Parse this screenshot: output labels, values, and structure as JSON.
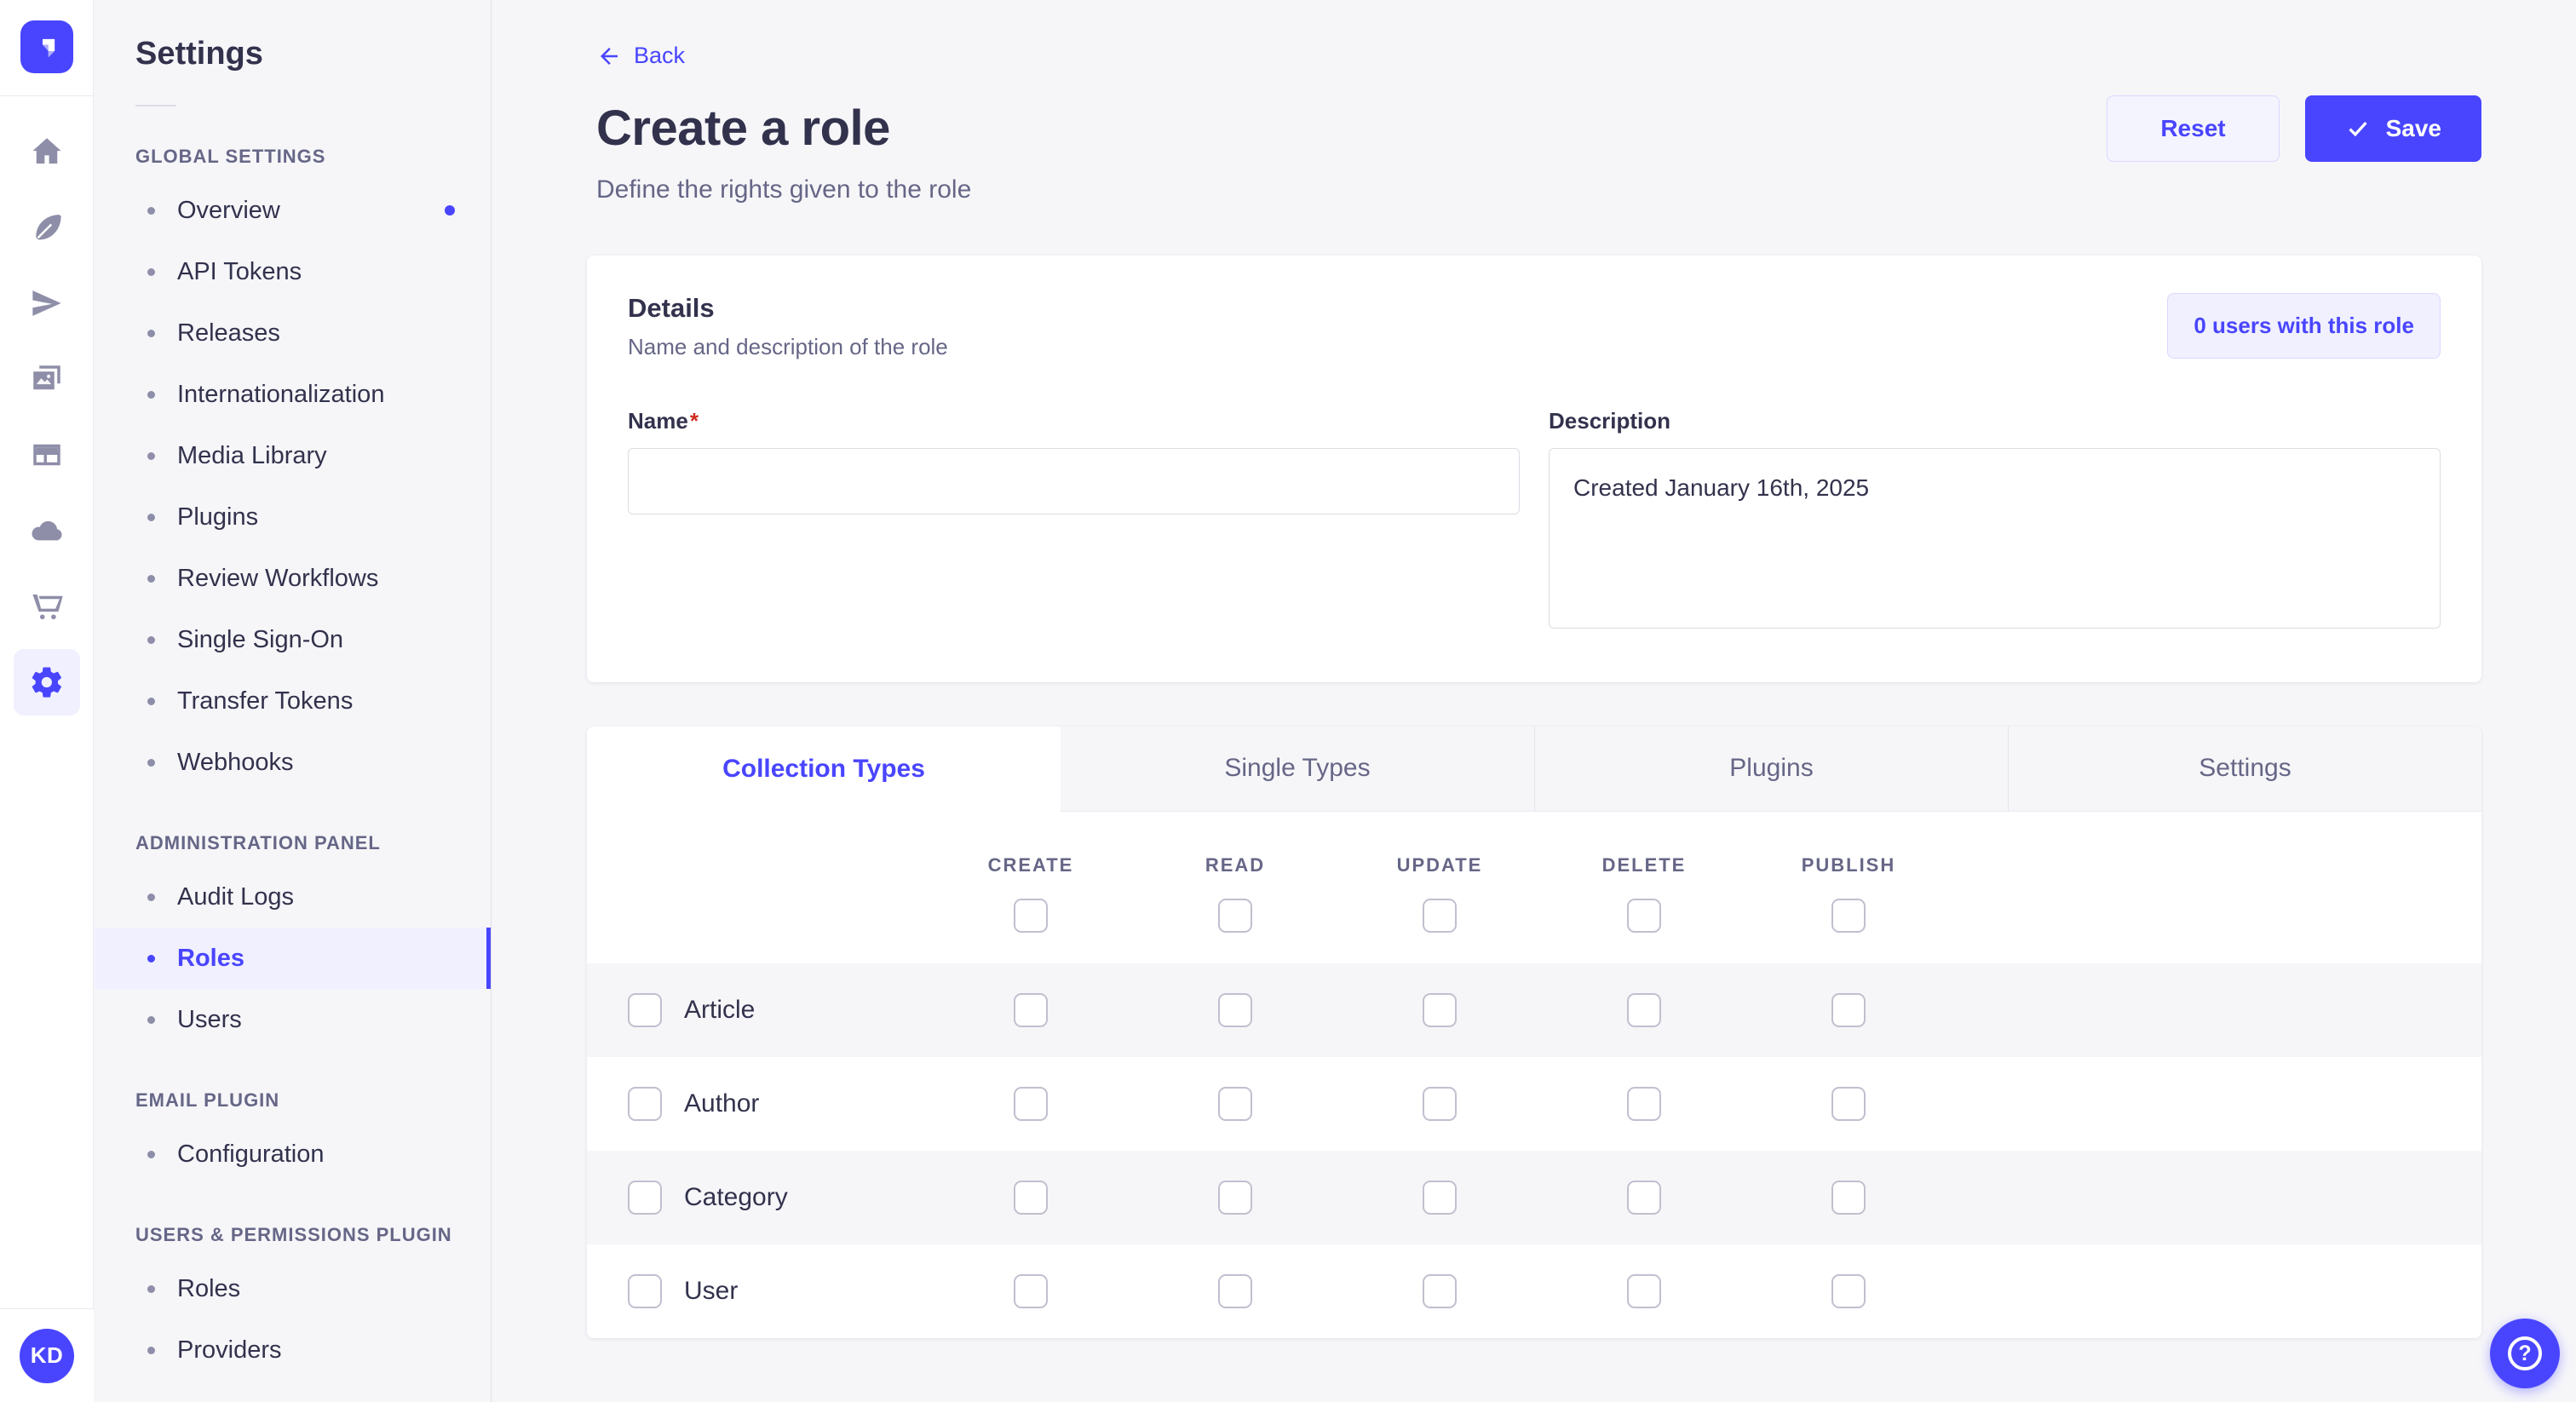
{
  "colors": {
    "brand_purple": "#4945ff",
    "brand_purple_light_bg": "#f0f0ff",
    "brand_purple_border": "#d9d8ff",
    "text_dark": "#32324d",
    "text_muted": "#666687",
    "page_bg": "#f6f6f9",
    "required_red": "#d02b20"
  },
  "rail": {
    "logo_icon": "strapi-logo",
    "icons": [
      "home-icon",
      "feather-icon",
      "paper-plane-icon",
      "media-library-icon",
      "layout-icon",
      "cloud-icon",
      "cart-icon",
      "gear-icon"
    ],
    "active_icon": "gear-icon",
    "avatar_initials": "KD"
  },
  "sidebar": {
    "title": "Settings",
    "sections": [
      {
        "label": "GLOBAL SETTINGS",
        "items": [
          {
            "label": "Overview",
            "dot": true
          },
          {
            "label": "API Tokens"
          },
          {
            "label": "Releases"
          },
          {
            "label": "Internationalization"
          },
          {
            "label": "Media Library"
          },
          {
            "label": "Plugins"
          },
          {
            "label": "Review Workflows"
          },
          {
            "label": "Single Sign-On"
          },
          {
            "label": "Transfer Tokens"
          },
          {
            "label": "Webhooks"
          }
        ]
      },
      {
        "label": "ADMINISTRATION PANEL",
        "items": [
          {
            "label": "Audit Logs"
          },
          {
            "label": "Roles",
            "active": true
          },
          {
            "label": "Users"
          }
        ]
      },
      {
        "label": "EMAIL PLUGIN",
        "items": [
          {
            "label": "Configuration"
          }
        ]
      },
      {
        "label": "USERS & PERMISSIONS PLUGIN",
        "items": [
          {
            "label": "Roles"
          },
          {
            "label": "Providers"
          }
        ]
      }
    ]
  },
  "header": {
    "back_label": "Back",
    "title": "Create a role",
    "subtitle": "Define the rights given to the role",
    "reset_label": "Reset",
    "save_label": "Save"
  },
  "details": {
    "title": "Details",
    "subtitle": "Name and description of the role",
    "users_button_label": "0 users with this role",
    "name_label": "Name",
    "name_required_mark": "*",
    "name_value": "",
    "description_label": "Description",
    "description_value": "Created January 16th, 2025"
  },
  "permissions": {
    "tabs": [
      {
        "label": "Collection Types",
        "active": true
      },
      {
        "label": "Single Types"
      },
      {
        "label": "Plugins"
      },
      {
        "label": "Settings"
      }
    ],
    "columns": [
      "CREATE",
      "READ",
      "UPDATE",
      "DELETE",
      "PUBLISH"
    ],
    "rows": [
      {
        "label": "Article"
      },
      {
        "label": "Author"
      },
      {
        "label": "Category"
      },
      {
        "label": "User"
      }
    ],
    "all_checkboxes_checked": false
  },
  "help": {
    "glyph": "?"
  }
}
